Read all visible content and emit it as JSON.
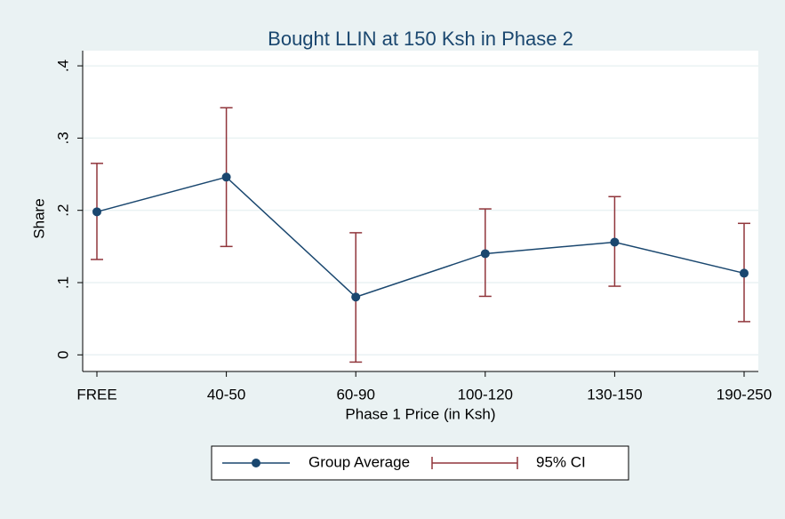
{
  "chart_data": {
    "type": "line",
    "title": "Bought LLIN at 150 Ksh in Phase 2",
    "x_label": "Phase 1 Price (in Ksh)",
    "y_label": "Share",
    "categories": [
      "FREE",
      "40-50",
      "60-90",
      "100-120",
      "130-150",
      "190-250"
    ],
    "series": [
      {
        "name": "Group Average",
        "color": "#1a476f",
        "values": [
          0.198,
          0.246,
          0.08,
          0.14,
          0.156,
          0.113
        ]
      },
      {
        "name": "95% CI",
        "color": "#90353b",
        "low": [
          0.132,
          0.15,
          -0.01,
          0.081,
          0.095,
          0.046
        ],
        "high": [
          0.265,
          0.342,
          0.169,
          0.202,
          0.219,
          0.182
        ]
      }
    ],
    "ylim": [
      -0.023,
      0.421
    ],
    "yticks": [
      0,
      {
        "value": 0.1,
        "label": ".1"
      },
      {
        "value": 0.2,
        "label": ".2"
      },
      {
        "value": 0.3,
        "label": ".3"
      },
      {
        "value": 0.4,
        "label": ".4"
      }
    ],
    "grid": true
  }
}
